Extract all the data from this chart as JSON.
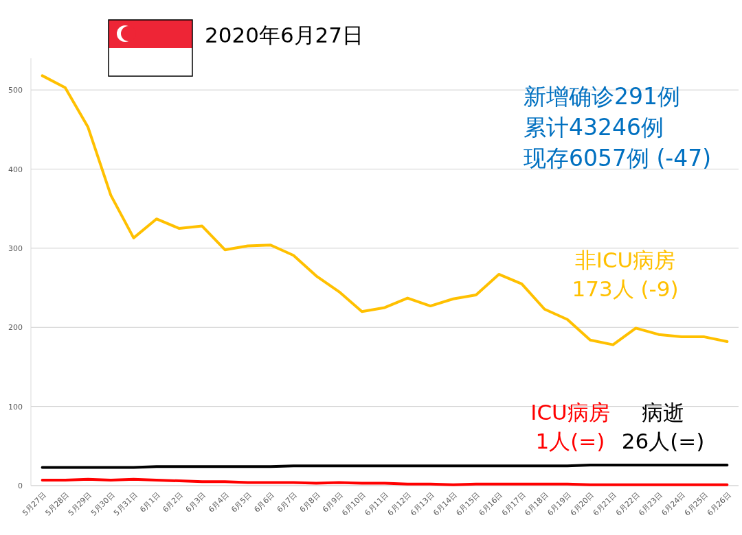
{
  "chart_data": {
    "type": "line",
    "title": "2020年6月27日",
    "annotations": [
      "新增确诊291例",
      "累计43246例",
      "现存6057例 (-47)"
    ],
    "categories": [
      "5月27日",
      "5月28日",
      "5月29日",
      "5月30日",
      "5月31日",
      "6月1日",
      "6月2日",
      "6月3日",
      "6月4日",
      "6月5日",
      "6月6日",
      "6月7日",
      "6月8日",
      "6月9日",
      "6月10日",
      "6月11日",
      "6月12日",
      "6月13日",
      "6月14日",
      "6月15日",
      "6月16日",
      "6月17日",
      "6月18日",
      "6月19日",
      "6月20日",
      "6月21日",
      "6月22日",
      "6月23日",
      "6月24日",
      "6月25日",
      "6月26日"
    ],
    "series": [
      {
        "name": "非ICU病房\n173人 (-9)",
        "color": "#ffc000",
        "values": [
          518,
          503,
          453,
          367,
          313,
          337,
          325,
          328,
          298,
          303,
          304,
          291,
          265,
          245,
          220,
          225,
          237,
          227,
          236,
          241,
          267,
          255,
          223,
          210,
          184,
          178,
          199,
          191,
          188,
          188,
          182
        ]
      },
      {
        "name": "ICU病房\n1人(=)",
        "color": "#ff0000",
        "values": [
          7,
          7,
          8,
          7,
          8,
          7,
          6,
          5,
          5,
          4,
          4,
          4,
          3,
          4,
          3,
          3,
          2,
          2,
          1,
          2,
          2,
          2,
          2,
          2,
          1,
          1,
          1,
          1,
          1,
          1,
          1
        ]
      },
      {
        "name": "病逝\n26人(=)",
        "color": "#000000",
        "values": [
          23,
          23,
          23,
          23,
          23,
          24,
          24,
          24,
          24,
          24,
          24,
          25,
          25,
          25,
          25,
          25,
          25,
          25,
          25,
          25,
          25,
          25,
          25,
          25,
          26,
          26,
          26,
          26,
          26,
          26,
          26
        ]
      }
    ],
    "ylim": [
      0,
      540
    ],
    "yticks": [
      0,
      100,
      200,
      300,
      400,
      500
    ],
    "grid": "y",
    "legend": false,
    "marker": "none",
    "line_style": "solid"
  }
}
